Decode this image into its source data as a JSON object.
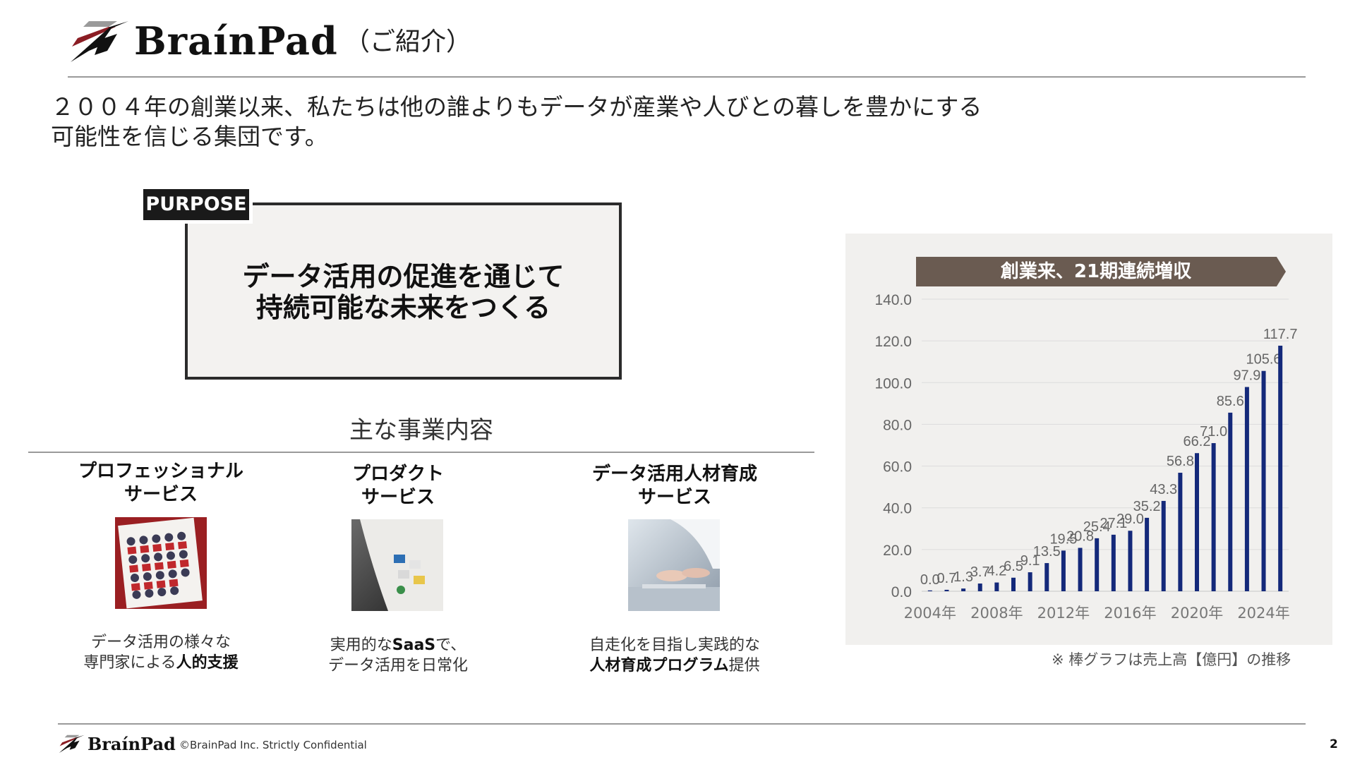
{
  "header": {
    "brand": "BraínPad",
    "intro": "（ご紹介）"
  },
  "tagline": {
    "line1": "２００４年の創業以来、私たちは他の誰よりもデータが産業や人びとの暮しを豊かにする",
    "line2": "可能性を信じる集団です。"
  },
  "purpose": {
    "tag": "PURPOSE",
    "line1": "データ活用の促進を通じて",
    "line2": "持続可能な未来をつくる"
  },
  "business": {
    "title": "主な事業内容",
    "services": [
      {
        "title_line1": "プロフェッショナル",
        "title_line2": "サービス",
        "desc_line1": "データ活用の様々な",
        "desc_line2_plain": "専門家による",
        "desc_line2_bold": "人的支援"
      },
      {
        "title_line1": "プロダクト",
        "title_line2": "サービス",
        "desc_line1_plain": "実用的な",
        "desc_line1_bold": "SaaS",
        "desc_line1_tail": "で、",
        "desc_line2": "データ活用を日常化"
      },
      {
        "title_line1": "データ活用人材育成",
        "title_line2": "サービス",
        "desc_line1": "自走化を目指し実践的な",
        "desc_line2_bold": "人材育成プログラム",
        "desc_line2_plain": "提供"
      }
    ]
  },
  "chart_data": {
    "type": "bar",
    "title": "創業来、21期連続増収",
    "categories": [
      "2004年",
      "2005年",
      "2006年",
      "2007年",
      "2008年",
      "2009年",
      "2010年",
      "2011年",
      "2012年",
      "2013年",
      "2014年",
      "2015年",
      "2016年",
      "2017年",
      "2018年",
      "2019年",
      "2020年",
      "2021年",
      "2022年",
      "2023年",
      "2024年",
      "2025年"
    ],
    "values": [
      0.0,
      0.7,
      1.3,
      3.7,
      4.2,
      6.5,
      9.1,
      13.5,
      19.5,
      20.8,
      25.4,
      27.1,
      29.0,
      35.2,
      43.3,
      56.8,
      66.2,
      71.0,
      85.6,
      97.9,
      105.6,
      117.7
    ],
    "value_labels": [
      "0.0",
      "0.7",
      "1.3",
      "3.7",
      "4.2",
      "6.5",
      "9.1",
      "13.5",
      "19.5",
      "20.8",
      "25.4",
      "27.1",
      "29.0",
      "35.2",
      "43.3",
      "56.8",
      "66.2",
      "71.0",
      "85.6",
      "97.9",
      "105.6",
      "117.7"
    ],
    "x_tick_labels": [
      "2004年",
      "2008年",
      "2012年",
      "2016年",
      "2020年",
      "2024年"
    ],
    "y_tick_labels": [
      "0.0",
      "20.0",
      "40.0",
      "60.0",
      "80.0",
      "100.0",
      "120.0",
      "140.0"
    ],
    "ylim": [
      0,
      140
    ],
    "grid": true,
    "bar_color": "#14297a"
  },
  "chart_note": "※ 棒グラフは売上高【億円】の推移",
  "footer": {
    "brand": "BraínPad",
    "copyright": "©BrainPad Inc.   Strictly Confidential",
    "page": "2"
  }
}
